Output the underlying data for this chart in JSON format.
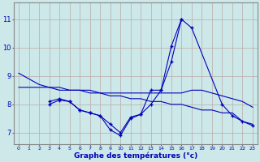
{
  "title": "Graphe des températures (°c)",
  "background_color": "#cce8e8",
  "grid_color": "#bbaaaa",
  "line_color": "#0000bb",
  "ylabel_values": [
    7,
    8,
    9,
    10,
    11
  ],
  "ylim": [
    6.6,
    11.6
  ],
  "xlim": [
    -0.5,
    23.5
  ],
  "line1_x": [
    0,
    2,
    3,
    4,
    5,
    6,
    7,
    8,
    9,
    10,
    11,
    12,
    13,
    14,
    15,
    16,
    17,
    18,
    19,
    20,
    21,
    22,
    23
  ],
  "line1_y": [
    9.1,
    8.7,
    8.6,
    8.6,
    8.5,
    8.5,
    8.4,
    8.4,
    8.3,
    8.3,
    8.2,
    8.2,
    8.1,
    8.1,
    8.0,
    8.0,
    7.9,
    7.8,
    7.8,
    7.7,
    7.7,
    7.4,
    7.3
  ],
  "line2_x": [
    0,
    2,
    3,
    4,
    5,
    6,
    7,
    8,
    9,
    10,
    11,
    12,
    13,
    14,
    15,
    16,
    17,
    18,
    19,
    20,
    21,
    22,
    23
  ],
  "line2_y": [
    8.6,
    8.6,
    8.6,
    8.5,
    8.5,
    8.5,
    8.5,
    8.4,
    8.4,
    8.4,
    8.4,
    8.4,
    8.4,
    8.4,
    8.4,
    8.4,
    8.5,
    8.5,
    8.4,
    8.3,
    8.2,
    8.1,
    7.9
  ],
  "line3_x": [
    3,
    4,
    5,
    6,
    7,
    8,
    9,
    10,
    11,
    12,
    13,
    14,
    15,
    16,
    17,
    20,
    21,
    22,
    23
  ],
  "line3_y": [
    8.1,
    8.2,
    8.1,
    7.8,
    7.7,
    7.6,
    7.1,
    6.9,
    7.5,
    7.65,
    8.5,
    8.5,
    10.05,
    11.0,
    10.7,
    8.0,
    7.6,
    7.4,
    7.25
  ],
  "line4_x": [
    3,
    4,
    5,
    6,
    7,
    8,
    9,
    10,
    11,
    12,
    13,
    14,
    15,
    16
  ],
  "line4_y": [
    8.0,
    8.15,
    8.1,
    7.8,
    7.7,
    7.6,
    7.3,
    7.0,
    7.55,
    7.65,
    8.0,
    8.5,
    9.5,
    11.0
  ]
}
